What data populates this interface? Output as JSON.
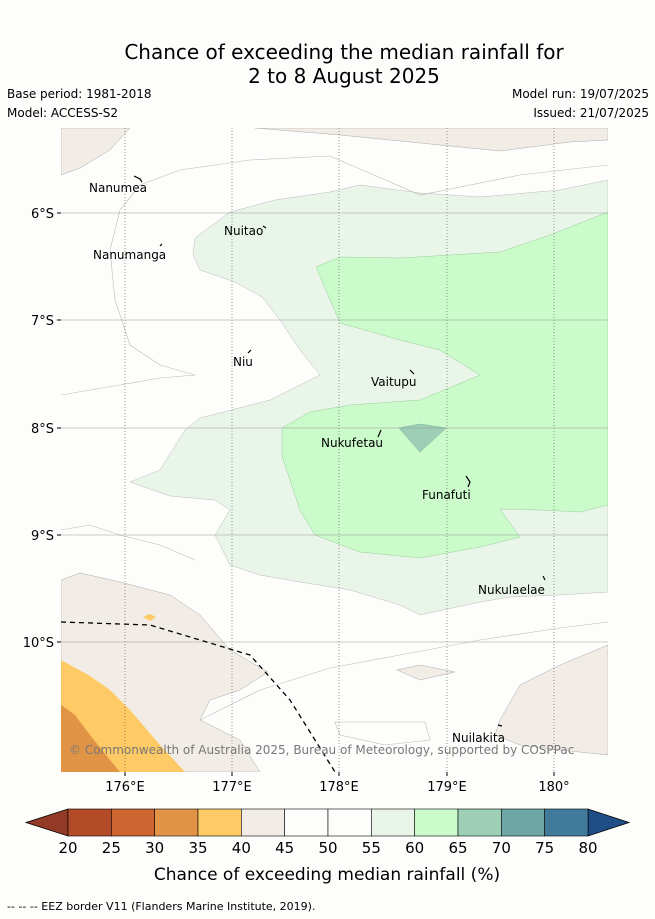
{
  "header": {
    "title_line1": "Chance of exceeding the median rainfall for",
    "title_line2": "2 to 8 August 2025",
    "base_period": "Base period: 1981-2018",
    "model": "Model: ACCESS-S2",
    "model_run": "Model run: 19/07/2025",
    "issued": "Issued: 21/07/2025"
  },
  "map": {
    "lon_ticks": [
      "176°E",
      "177°E",
      "178°E",
      "179°E",
      "180°"
    ],
    "lat_ticks": [
      "6°S",
      "7°S",
      "8°S",
      "9°S",
      "10°S"
    ],
    "islands": [
      "Nanumea",
      "Nuitao",
      "Nanumanga",
      "Niu",
      "Vaitupu",
      "Nukufetau",
      "Funafuti",
      "Nukulaelae",
      "Nuilakita"
    ],
    "copyright": "© Commonwealth of Australia 2025, Bureau of Meteorology, supported by COSPPac"
  },
  "colorbar": {
    "ticks": [
      "20",
      "25",
      "30",
      "35",
      "40",
      "45",
      "50",
      "55",
      "60",
      "65",
      "70",
      "75",
      "80"
    ],
    "colors": [
      "#b34a28",
      "#cf6530",
      "#e19445",
      "#fdca65",
      "#f2ece6",
      "#fdfdfb",
      "#fdfdfb",
      "#eaf5e9",
      "#cbfbcb",
      "#9ccfb6",
      "#6ea6a7",
      "#417a9b"
    ],
    "under_color": "#923a25",
    "over_color": "#1f4e86",
    "label": "Chance of exceeding median rainfall (%)"
  },
  "legend": {
    "eez": "-- -- -- EEZ border V11 (Flanders Marine Institute, 2019)."
  }
}
